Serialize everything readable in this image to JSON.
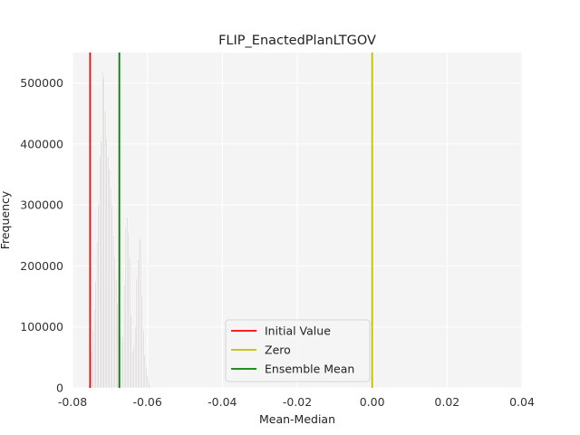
{
  "chart_data": {
    "type": "bar",
    "title": "FLIP_EnactedPlanLTGOV",
    "xlabel": "Mean-Median",
    "ylabel": "Frequency",
    "xlim": [
      -0.08,
      0.04
    ],
    "ylim": [
      0,
      550000
    ],
    "xticks": [
      "-0.08",
      "-0.06",
      "-0.04",
      "-0.02",
      "0.00",
      "0.02",
      "0.04"
    ],
    "xtick_values": [
      -0.08,
      -0.06,
      -0.04,
      -0.02,
      0.0,
      0.02,
      0.04
    ],
    "yticks": [
      "0",
      "100000",
      "200000",
      "300000",
      "400000",
      "500000"
    ],
    "ytick_values": [
      0,
      100000,
      200000,
      300000,
      400000,
      500000
    ],
    "grid": true,
    "legend_position": "lower-center",
    "histogram": {
      "bin_start": -0.0758,
      "bin_width": 0.000364,
      "color": "#d8d4d4",
      "edge_color": "#ffffff",
      "values": [
        5000,
        15000,
        60000,
        95000,
        130000,
        175000,
        240000,
        300000,
        380000,
        405000,
        520000,
        510000,
        455000,
        410000,
        380000,
        360000,
        330000,
        300000,
        250000,
        215000,
        180000,
        140000,
        115000,
        90000,
        75000,
        85000,
        170000,
        265000,
        280000,
        255000,
        215000,
        120000,
        60000,
        70000,
        100000,
        180000,
        210000,
        245000,
        245000,
        150000,
        95000,
        55000,
        35000,
        20000,
        10000,
        5000
      ]
    },
    "vlines": [
      {
        "name": "Initial Value",
        "x": -0.0753,
        "color": "#ff0000"
      },
      {
        "name": "Zero",
        "x": 0.0,
        "color": "#bfbf00"
      },
      {
        "name": "Ensemble Mean",
        "x": -0.0675,
        "color": "#008000"
      }
    ]
  }
}
